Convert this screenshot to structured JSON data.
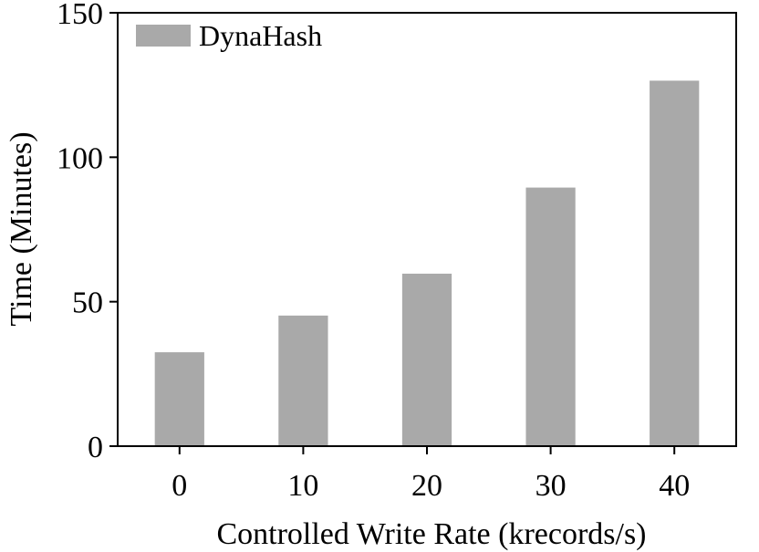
{
  "chart_data": {
    "type": "bar",
    "categories": [
      "0",
      "10",
      "20",
      "30",
      "40"
    ],
    "series": [
      {
        "name": "DynaHash",
        "values": [
          32.5,
          45.2,
          59.7,
          89.5,
          126.5
        ]
      }
    ],
    "xlabel": "Controlled Write Rate (krecords/s)",
    "ylabel": "Time (Minutes)",
    "ylim": [
      0,
      150
    ],
    "yticks": [
      "0",
      "50",
      "100",
      "150"
    ],
    "grid": false,
    "legend": "top-left",
    "colors": {
      "bar": "#a9a9a9",
      "axis": "#000000"
    }
  }
}
